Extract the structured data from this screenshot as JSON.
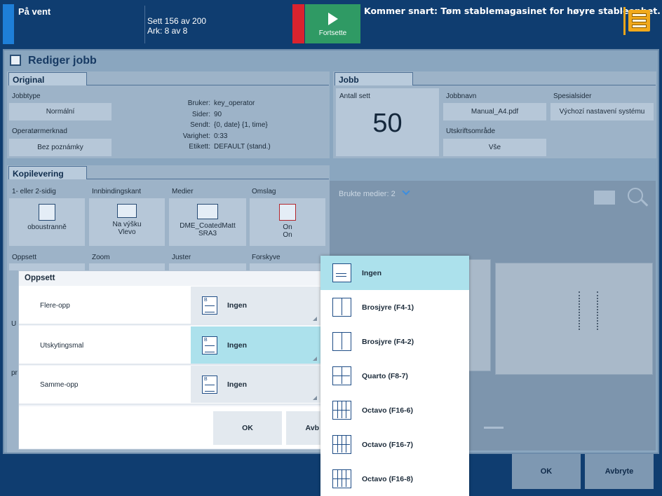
{
  "topbar": {
    "status": "På vent",
    "sets": "Sett 156 av 200",
    "sheets": "Ark: 8 av 8",
    "continue_label": "Fortsette",
    "message": "Kommer snart: Tøm stablemagasinet for høyre stableenhet."
  },
  "page": {
    "title": "Rediger jobb"
  },
  "original": {
    "tab": "Original",
    "jobtype_label": "Jobbtype",
    "jobtype_value": "Normální",
    "operator_note_label": "Operatørmerknad",
    "operator_note_value": "Bez poznámky",
    "info": [
      {
        "key": "Bruker:",
        "value": "key_operator"
      },
      {
        "key": "Sider:",
        "value": "90"
      },
      {
        "key": "Sendt:",
        "value": "{0, date} {1, time}"
      },
      {
        "key": "Varighet:",
        "value": "0:33"
      },
      {
        "key": "Etikett:",
        "value": "DEFAULT (stand.)"
      }
    ]
  },
  "job": {
    "tab": "Jobb",
    "copies_label": "Antall sett",
    "copies_value": "50",
    "jobname_label": "Jobbnavn",
    "jobname_value": "Manual_A4.pdf",
    "print_range_label": "Utskriftsområde",
    "print_range_value": "Vše",
    "special_pages_label": "Spesialsider",
    "special_pages_value": "Výchozí nastavení systému"
  },
  "copy_delivery": {
    "tab": "Kopilevering",
    "tiles": [
      {
        "label": "1- eller 2-sidig",
        "value": "oboustranně",
        "value2": ""
      },
      {
        "label": "Innbindingskant",
        "value": "Na výšku",
        "value2": "Vlevo"
      },
      {
        "label": "Medier",
        "value": "DME_CoatedMatt",
        "value2": "SRA3"
      },
      {
        "label": "Omslag",
        "value": "On",
        "value2": "On"
      }
    ],
    "row2_labels": [
      "Oppsett",
      "Zoom",
      "Juster",
      "Forskyve"
    ],
    "partial_u": "U",
    "partial_pr": "pr"
  },
  "preview": {
    "media_used": "Brukte medier: 2"
  },
  "dialog": {
    "title": "Oppsett",
    "rows": [
      {
        "label": "Flere-opp",
        "value": "Ingen"
      },
      {
        "label": "Utskytingsmal",
        "value": "Ingen"
      },
      {
        "label": "Samme-opp",
        "value": "Ingen"
      }
    ],
    "ok": "OK",
    "cancel_partial": "Avb"
  },
  "dropdown": {
    "options": [
      "Ingen",
      "Brosjyre (F4-1)",
      "Brosjyre (F4-2)",
      "Quarto (F8-7)",
      "Octavo (F16-6)",
      "Octavo (F16-7)",
      "Octavo (F16-8)"
    ],
    "selected": "Ingen"
  },
  "footer": {
    "ok": "OK",
    "cancel": "Avbryte"
  }
}
